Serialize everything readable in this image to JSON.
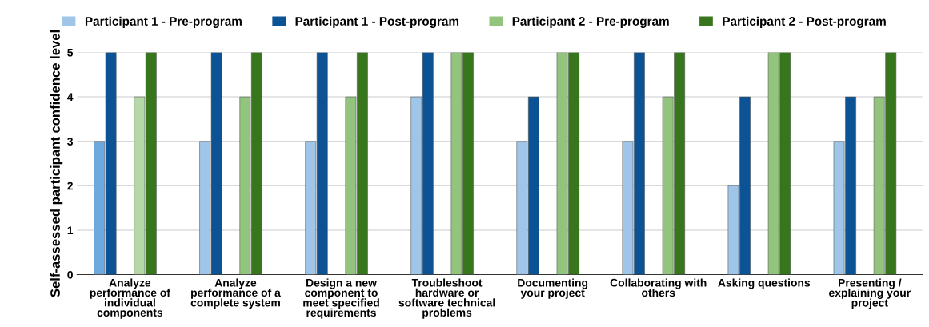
{
  "chart_data": {
    "type": "bar",
    "ylabel": "Self-assessed participant confidence level",
    "categories": [
      "Analyze\nperformance of\nindividual\ncomponents",
      "Analyze\nperformance of a\ncomplete system",
      "Design a new\ncomponent to\nmeet specified\nrequirements",
      "Troubleshoot\nhardware or\nsoftware technical\nproblems",
      "Documenting\nyour project",
      "Collaborating with\nothers",
      "Asking questions",
      "Presenting /\nexplaining your\nproject"
    ],
    "series": [
      {
        "name": "Participant 1 - Pre-program",
        "color": "#9fc5e8",
        "colors": [
          "#6fa8dc",
          "#9fc5e8",
          "#9fc5e8",
          "#9fc5e8",
          "#9fc5e8",
          "#9fc5e8",
          "#9fc5e8",
          "#9fc5e8"
        ],
        "values": [
          3,
          3,
          3,
          4,
          3,
          3,
          2,
          3
        ]
      },
      {
        "name": "Participant 1 - Post-program",
        "color": "#0b5394",
        "values": [
          5,
          5,
          5,
          5,
          4,
          5,
          4,
          4
        ]
      },
      {
        "name": "Participant 2 - Pre-program",
        "color": "#93c47d",
        "colors": [
          "#b6d7a8",
          "#93c47d",
          "#93c47d",
          "#93c47d",
          "#93c47d",
          "#93c47d",
          "#93c47d",
          "#93c47d"
        ],
        "values": [
          4,
          4,
          4,
          5,
          5,
          4,
          5,
          4
        ]
      },
      {
        "name": "Participant 2 - Post-program",
        "color": "#38761d",
        "values": [
          5,
          5,
          5,
          5,
          5,
          5,
          5,
          5
        ]
      }
    ],
    "ylim": [
      0,
      5
    ],
    "yticks": [
      0,
      1,
      2,
      3,
      4,
      5
    ],
    "grid": "y",
    "legend": "top left"
  }
}
